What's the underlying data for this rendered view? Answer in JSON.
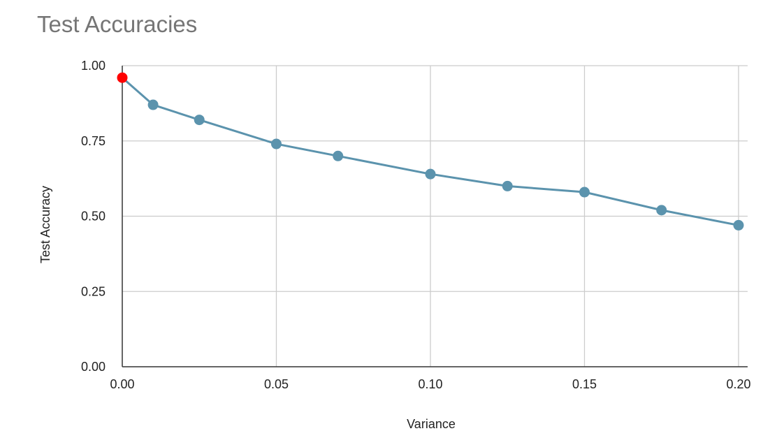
{
  "chart_data": {
    "type": "line",
    "title": "Test Accuracies",
    "xlabel": "Variance",
    "ylabel": "Test Accuracy",
    "xlim": [
      0,
      0.2
    ],
    "ylim": [
      0,
      1
    ],
    "x_ticks": [
      "0.00",
      "0.05",
      "0.10",
      "0.15",
      "0.20"
    ],
    "x_tick_values": [
      0,
      0.05,
      0.1,
      0.15,
      0.2
    ],
    "y_ticks": [
      "0.00",
      "0.25",
      "0.50",
      "0.75",
      "1.00"
    ],
    "y_tick_values": [
      0,
      0.25,
      0.5,
      0.75,
      1.0
    ],
    "grid": true,
    "series": [
      {
        "color": "#5b93ad",
        "x": [
          0,
          0.01,
          0.025,
          0.05,
          0.07,
          0.1,
          0.125,
          0.15,
          0.175,
          0.2
        ],
        "y": [
          0.96,
          0.87,
          0.82,
          0.74,
          0.7,
          0.64,
          0.6,
          0.58,
          0.52,
          0.47
        ],
        "highlight_index": 0,
        "highlight_color": "#ff0000"
      }
    ]
  }
}
